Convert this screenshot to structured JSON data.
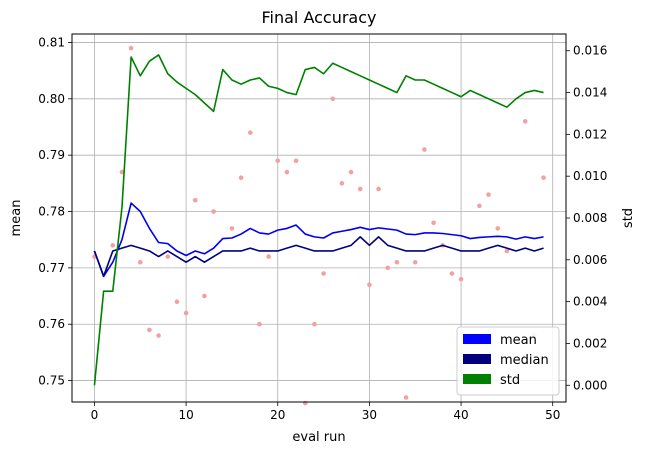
{
  "chart_data": {
    "type": "line",
    "title": "Final Accuracy",
    "xlabel": "eval run",
    "ylabel_left": "mean",
    "ylabel_right": "std",
    "xlim": [
      -2.45,
      51.45
    ],
    "ylim_left": [
      0.7462,
      0.8115
    ],
    "ylim_right": [
      -0.0008,
      0.0168
    ],
    "xticks": [
      0,
      10,
      20,
      30,
      40,
      50
    ],
    "yticks_left": [
      0.75,
      0.76,
      0.77,
      0.78,
      0.79,
      0.8,
      0.81
    ],
    "yticks_left_labels": [
      "0.75",
      "0.76",
      "0.77",
      "0.78",
      "0.79",
      "0.80",
      "0.81"
    ],
    "yticks_right": [
      0.0,
      0.002,
      0.004,
      0.006,
      0.008,
      0.01,
      0.012,
      0.014,
      0.016
    ],
    "yticks_right_labels": [
      "0.000",
      "0.002",
      "0.004",
      "0.006",
      "0.008",
      "0.010",
      "0.012",
      "0.014",
      "0.016"
    ],
    "grid": true,
    "legend_position": "bottom-right",
    "x": [
      0,
      1,
      2,
      3,
      4,
      5,
      6,
      7,
      8,
      9,
      10,
      11,
      12,
      13,
      14,
      15,
      16,
      17,
      18,
      19,
      20,
      21,
      22,
      23,
      24,
      25,
      26,
      27,
      28,
      29,
      30,
      31,
      32,
      33,
      34,
      35,
      36,
      37,
      38,
      39,
      40,
      41,
      42,
      43,
      44,
      45,
      46,
      47,
      48,
      49
    ],
    "series": [
      {
        "name": "mean",
        "axis": "left",
        "color": "#0000ee",
        "values": [
          0.773,
          0.7685,
          0.771,
          0.775,
          0.7815,
          0.78,
          0.777,
          0.7745,
          0.7743,
          0.773,
          0.7722,
          0.773,
          0.7725,
          0.7735,
          0.7752,
          0.7753,
          0.776,
          0.777,
          0.7762,
          0.776,
          0.7767,
          0.777,
          0.7776,
          0.776,
          0.7755,
          0.7753,
          0.7762,
          0.7765,
          0.7768,
          0.7772,
          0.7768,
          0.7771,
          0.7769,
          0.7767,
          0.776,
          0.7759,
          0.7762,
          0.7762,
          0.7761,
          0.7759,
          0.7757,
          0.7752,
          0.7754,
          0.7755,
          0.7756,
          0.7755,
          0.7751,
          0.7755,
          0.7752,
          0.7755
        ]
      },
      {
        "name": "median",
        "axis": "left",
        "color": "#000080",
        "values": [
          0.773,
          0.7685,
          0.773,
          0.7735,
          0.774,
          0.7735,
          0.773,
          0.772,
          0.773,
          0.772,
          0.771,
          0.772,
          0.771,
          0.772,
          0.773,
          0.773,
          0.773,
          0.7735,
          0.773,
          0.773,
          0.773,
          0.7735,
          0.774,
          0.7735,
          0.773,
          0.773,
          0.773,
          0.7735,
          0.774,
          0.7755,
          0.774,
          0.7755,
          0.774,
          0.7735,
          0.773,
          0.773,
          0.773,
          0.7735,
          0.774,
          0.7735,
          0.773,
          0.773,
          0.773,
          0.7735,
          0.774,
          0.7735,
          0.773,
          0.7735,
          0.773,
          0.7735
        ]
      },
      {
        "name": "std",
        "axis": "right",
        "color": "#008000",
        "values": [
          0.0,
          0.0045,
          0.0045,
          0.0085,
          0.0157,
          0.0148,
          0.0155,
          0.0158,
          0.0149,
          0.0145,
          0.0142,
          0.0139,
          0.0135,
          0.0131,
          0.0151,
          0.0146,
          0.0144,
          0.0146,
          0.0147,
          0.0143,
          0.0142,
          0.014,
          0.0139,
          0.0151,
          0.0152,
          0.0149,
          0.0154,
          0.0152,
          0.015,
          0.0148,
          0.0146,
          0.0144,
          0.0142,
          0.014,
          0.0148,
          0.0146,
          0.0146,
          0.0144,
          0.0142,
          0.014,
          0.0138,
          0.0141,
          0.0139,
          0.0137,
          0.0135,
          0.0133,
          0.0137,
          0.014,
          0.0141,
          0.014
        ]
      },
      {
        "name": "scatter",
        "axis": "left",
        "type": "scatter",
        "color": "#f4a0a0",
        "points": [
          [
            0,
            0.772
          ],
          [
            2,
            0.774
          ],
          [
            3,
            0.787
          ],
          [
            4,
            0.809
          ],
          [
            5,
            0.771
          ],
          [
            6,
            0.759
          ],
          [
            7,
            0.758
          ],
          [
            8,
            0.772
          ],
          [
            9,
            0.764
          ],
          [
            10,
            0.762
          ],
          [
            11,
            0.782
          ],
          [
            12,
            0.765
          ],
          [
            13,
            0.78
          ],
          [
            15,
            0.777
          ],
          [
            16,
            0.786
          ],
          [
            17,
            0.794
          ],
          [
            18,
            0.76
          ],
          [
            19,
            0.772
          ],
          [
            20,
            0.789
          ],
          [
            21,
            0.787
          ],
          [
            22,
            0.789
          ],
          [
            23,
            0.746
          ],
          [
            24,
            0.76
          ],
          [
            25,
            0.769
          ],
          [
            26,
            0.8
          ],
          [
            27,
            0.785
          ],
          [
            28,
            0.787
          ],
          [
            29,
            0.784
          ],
          [
            30,
            0.767
          ],
          [
            31,
            0.784
          ],
          [
            32,
            0.77
          ],
          [
            33,
            0.771
          ],
          [
            34,
            0.747
          ],
          [
            35,
            0.771
          ],
          [
            36,
            0.791
          ],
          [
            37,
            0.778
          ],
          [
            38,
            0.774
          ],
          [
            39,
            0.769
          ],
          [
            40,
            0.768
          ],
          [
            42,
            0.781
          ],
          [
            43,
            0.783
          ],
          [
            44,
            0.777
          ],
          [
            45,
            0.773
          ],
          [
            47,
            0.796
          ],
          [
            48,
            0.758
          ],
          [
            49,
            0.786
          ]
        ]
      }
    ],
    "legend": [
      {
        "label": "mean",
        "color": "#0000ff"
      },
      {
        "label": "median",
        "color": "#00007f"
      },
      {
        "label": "std",
        "color": "#008000"
      }
    ]
  }
}
